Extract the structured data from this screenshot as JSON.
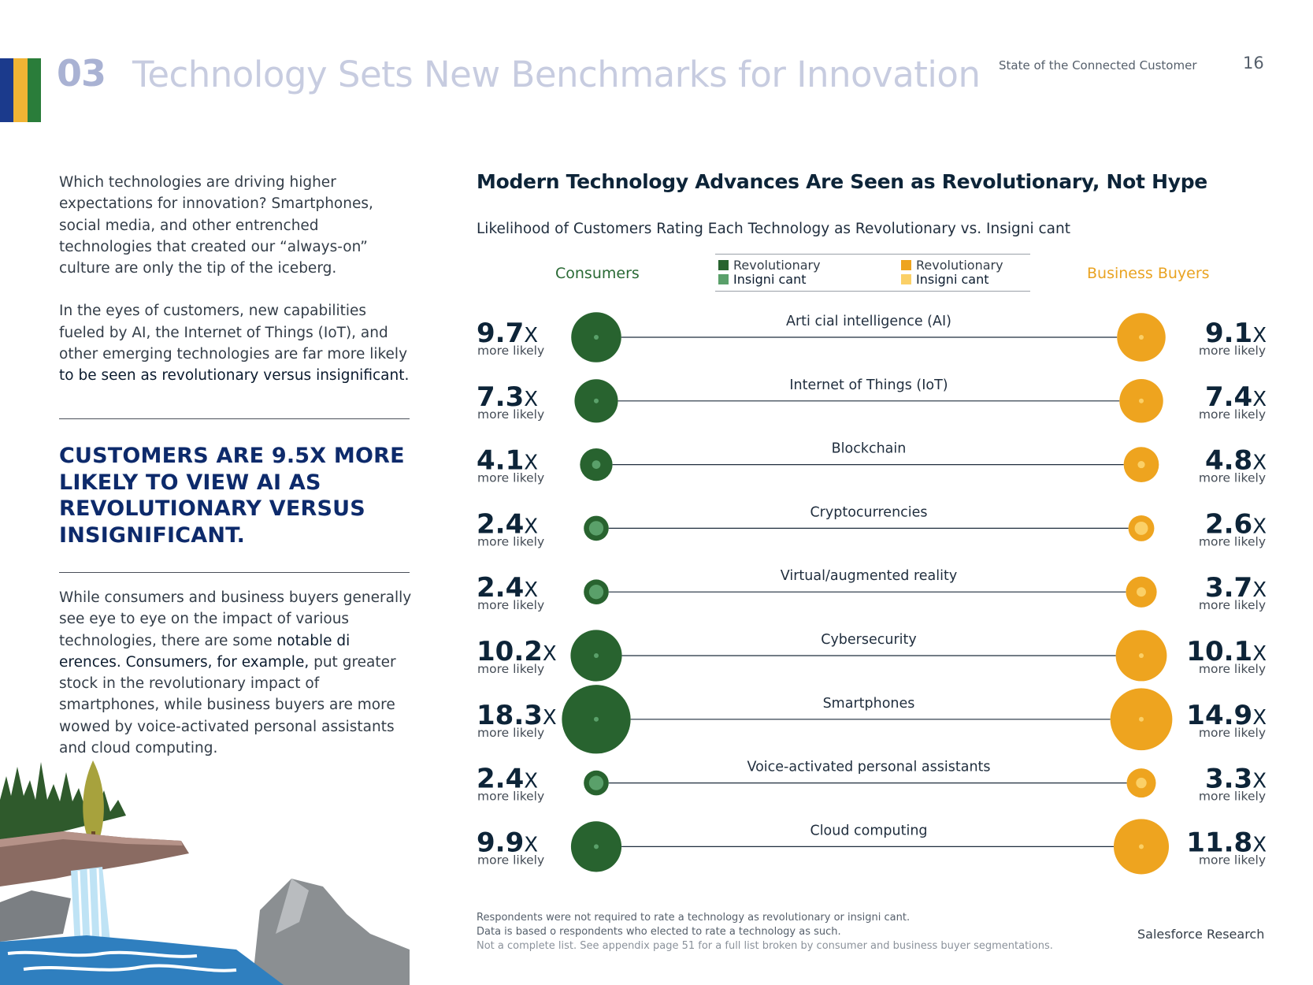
{
  "header": {
    "section_number": "03",
    "title": "Technology Sets New Benchmarks for Innovation",
    "report_name": "State of the Connected Customer",
    "page_number": "16",
    "bar_colors": [
      "#1b3a8c",
      "#f1b434",
      "#2a7d3a"
    ]
  },
  "left": {
    "intro_p1": "Which technologies are driving higher expectations for innovation? Smartphones, social media, and other entrenched technologies that created our “always-on” culture are only the tip of the iceberg.",
    "intro_p2_a": "In the eyes of customers, new capabilities fueled by AI, the Internet of Things (IoT), and other emerging technologies are far more likely",
    "intro_p2_b": "to be seen as revolutionary versus insignificant.",
    "callout": "Customers are 9.5x more likely to view AI as revolutionary versus insignificant.",
    "body_a": "While consumers and business buyers generally see eye to eye on the impact of various technologies, there are some",
    "body_b": "notable di erences. Consumers, for example,",
    "body_c": "put greater stock in the revolutionary impact of smartphones, while business buyers are more wowed by voice-activated personal assistants and cloud computing."
  },
  "chart_data": {
    "type": "bubble",
    "title": "Modern Technology Advances Are Seen as Revolutionary, Not Hype",
    "subtitle": "Likelihood of Customers Rating Each Technology as Revolutionary vs. Insigni  cant",
    "left_header": "Consumers",
    "right_header": "Business Buyers",
    "unit_label": "more likely",
    "suffix": "X",
    "legend": [
      {
        "label": "Revolutionary",
        "color": "#28632f",
        "group": "Consumers"
      },
      {
        "label": "Insigni  cant",
        "color": "#5aa06a",
        "group": "Consumers"
      },
      {
        "label": "Revolutionary",
        "color": "#eea41f",
        "group": "Business Buyers"
      },
      {
        "label": "Insigni  cant",
        "color": "#fbd067",
        "group": "Business Buyers"
      }
    ],
    "categories": [
      "Arti  cial intelligence (AI)",
      "Internet of Things (IoT)",
      "Blockchain",
      "Cryptocurrencies",
      "Virtual/augmented reality",
      "Cybersecurity",
      "Smartphones",
      "Voice-activated personal assistants",
      "Cloud computing"
    ],
    "series": [
      {
        "name": "Consumers",
        "values": [
          9.7,
          7.3,
          4.1,
          2.4,
          2.4,
          10.2,
          18.3,
          2.4,
          9.9
        ],
        "labels": [
          "9.7",
          "7.3",
          "4.1",
          "2.4",
          "2.4",
          "10.2",
          "18.3",
          "2.4",
          "9.9"
        ]
      },
      {
        "name": "Business Buyers",
        "values": [
          9.1,
          7.4,
          4.8,
          2.6,
          3.7,
          10.1,
          14.9,
          3.3,
          11.8
        ],
        "labels": [
          "9.1",
          "7.4",
          "4.8",
          "2.6",
          "3.7",
          "10.1",
          "14.9",
          "3.3",
          "11.8"
        ]
      }
    ]
  },
  "footnote": {
    "line1": "Respondents were not required to rate a technology as revolutionary or insigni  cant.",
    "line2": "Data is based o    respondents who elected to rate a technology as such.",
    "line3": "Not a complete list. See appendix page 51 for a full list broken by consumer and business buyer segmentations."
  },
  "brand": "Salesforce Research"
}
